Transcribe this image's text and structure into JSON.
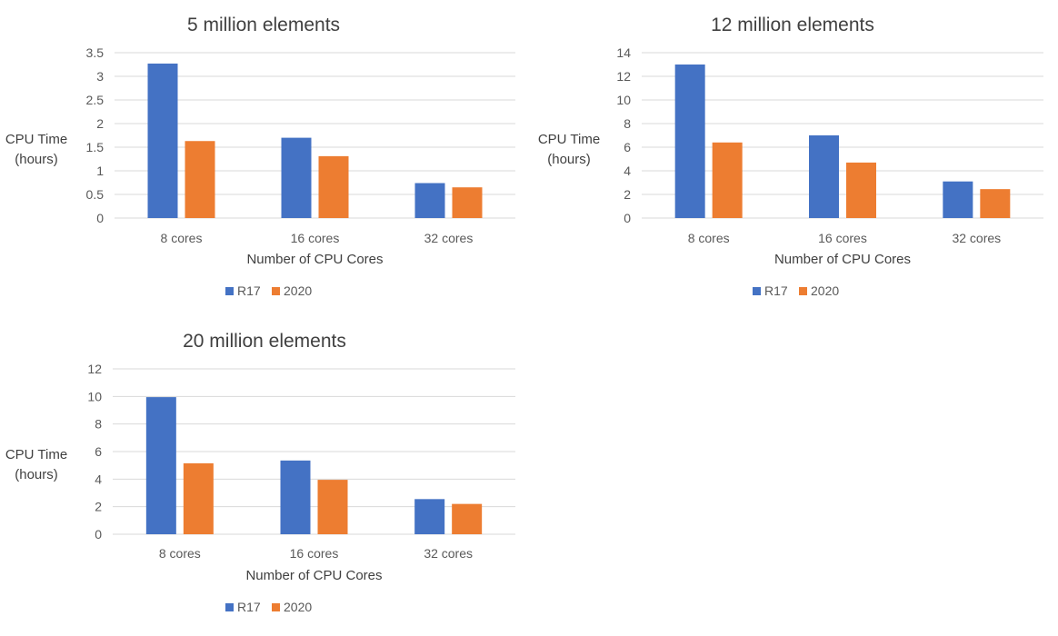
{
  "chart_data": [
    {
      "type": "bar",
      "title": "5 million elements",
      "xlabel": "Number of CPU Cores",
      "ylabel": "CPU Time (hours)",
      "ylabel_lines": [
        "CPU Time",
        "(hours)"
      ],
      "categories": [
        "8 cores",
        "16 cores",
        "32 cores"
      ],
      "series": [
        {
          "name": "R17",
          "color": "#4472C4",
          "values": [
            3.27,
            1.7,
            0.74
          ]
        },
        {
          "name": "2020",
          "color": "#ED7D31",
          "values": [
            1.63,
            1.31,
            0.65
          ]
        }
      ],
      "ylim": [
        0,
        3.5
      ],
      "yticks": [
        "0",
        "0.5",
        "1",
        "1.5",
        "2",
        "2.5",
        "3",
        "3.5"
      ],
      "grid": true,
      "legend": "bottom"
    },
    {
      "type": "bar",
      "title": "12 million elements",
      "xlabel": "Number of CPU Cores",
      "ylabel": "CPU Time (hours)",
      "ylabel_lines": [
        "CPU Time",
        "(hours)"
      ],
      "categories": [
        "8 cores",
        "16 cores",
        "32 cores"
      ],
      "series": [
        {
          "name": "R17",
          "color": "#4472C4",
          "values": [
            13.0,
            7.0,
            3.1
          ]
        },
        {
          "name": "2020",
          "color": "#ED7D31",
          "values": [
            6.4,
            4.7,
            2.45
          ]
        }
      ],
      "ylim": [
        0,
        14
      ],
      "yticks": [
        "0",
        "2",
        "4",
        "6",
        "8",
        "10",
        "12",
        "14"
      ],
      "grid": true,
      "legend": "bottom"
    },
    {
      "type": "bar",
      "title": "20 million elements",
      "xlabel": "Number of CPU Cores",
      "ylabel": "CPU Time (hours)",
      "ylabel_lines": [
        "CPU Time",
        "(hours)"
      ],
      "categories": [
        "8 cores",
        "16 cores",
        "32 cores"
      ],
      "series": [
        {
          "name": "R17",
          "color": "#4472C4",
          "values": [
            9.95,
            5.35,
            2.55
          ]
        },
        {
          "name": "2020",
          "color": "#ED7D31",
          "values": [
            5.15,
            3.95,
            2.2
          ]
        }
      ],
      "ylim": [
        0,
        12
      ],
      "yticks": [
        "0",
        "2",
        "4",
        "6",
        "8",
        "10",
        "12"
      ],
      "grid": true,
      "legend": "bottom"
    }
  ]
}
